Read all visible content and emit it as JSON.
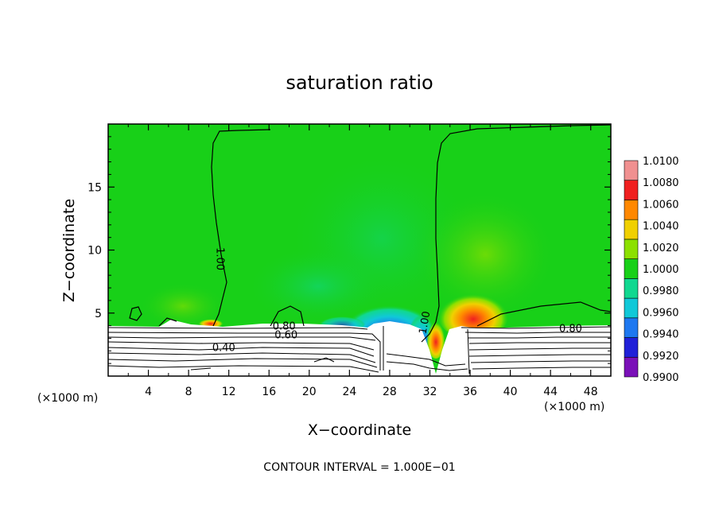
{
  "chart_data": {
    "type": "heatmap",
    "title": "saturation ratio",
    "xlabel": "X−coordinate",
    "ylabel": "Z−coordinate",
    "x_unit_left": "(×1000 m)",
    "x_unit_right": "(×1000 m)",
    "footer": "CONTOUR INTERVAL = 1.000E−01",
    "xlim": [
      0,
      50
    ],
    "ylim": [
      0,
      20
    ],
    "x_ticks": [
      4,
      8,
      12,
      16,
      20,
      24,
      28,
      32,
      36,
      40,
      44,
      48
    ],
    "x_tick_labels": [
      "4",
      "8",
      "12",
      "16",
      "20",
      "24",
      "28",
      "32",
      "36",
      "40",
      "44",
      "48"
    ],
    "y_ticks": [
      5,
      10,
      15
    ],
    "y_tick_labels": [
      "5",
      "10",
      "15"
    ],
    "colorbar": {
      "levels": [
        "0.9900",
        "0.9920",
        "0.9940",
        "0.9960",
        "0.9980",
        "1.0000",
        "1.0020",
        "1.0040",
        "1.0060",
        "1.0080",
        "1.0100"
      ],
      "colors": [
        "#7a10b8",
        "#2020d8",
        "#1e78f0",
        "#10c8d8",
        "#10d890",
        "#18d018",
        "#8ce000",
        "#f0d000",
        "#ff8800",
        "#f02020",
        "#f09090"
      ]
    },
    "contour_labels": [
      {
        "text": "1.00",
        "x": 10.8,
        "y": 9.3,
        "angle": 90
      },
      {
        "text": "1.00",
        "x": 31.8,
        "y": 4.2,
        "angle": -80
      },
      {
        "text": "0.80",
        "x": 17.5,
        "y": 3.7,
        "angle": 0
      },
      {
        "text": "0.60",
        "x": 17.7,
        "y": 3.0,
        "angle": 0
      },
      {
        "text": "0.40",
        "x": 11.5,
        "y": 2.0,
        "angle": 0
      },
      {
        "text": "0.80",
        "x": 46.0,
        "y": 3.5,
        "angle": 0
      }
    ],
    "colors": {
      "background": "#18d018",
      "ground": "#ffffff",
      "contour": "#000000"
    }
  }
}
